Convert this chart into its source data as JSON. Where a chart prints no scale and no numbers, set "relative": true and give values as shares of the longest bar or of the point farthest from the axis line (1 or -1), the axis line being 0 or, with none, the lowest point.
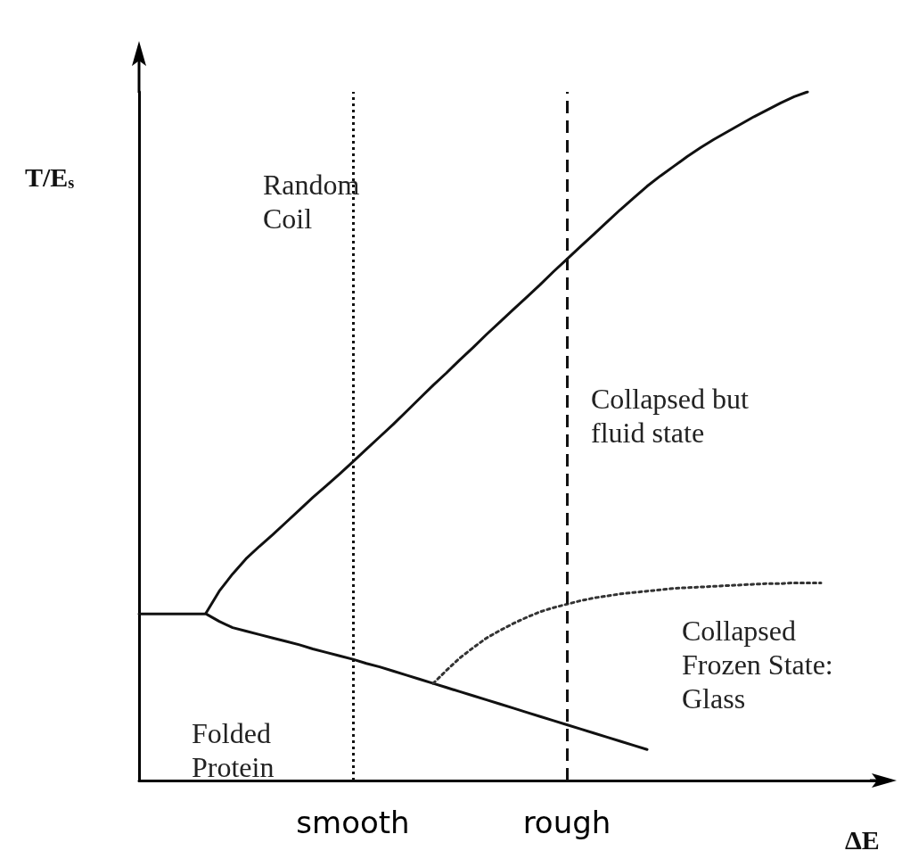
{
  "chart_data": {
    "type": "line",
    "relative": true,
    "xlabel": "ΔE",
    "ylabel": "T/E$_{s}$",
    "tick_labels": "x",
    "grid": false,
    "marker": "none",
    "categories": [
      null,
      null,
      null,
      null,
      null,
      null,
      null,
      null,
      null,
      null,
      null,
      null,
      null,
      null,
      null,
      null,
      "smooth",
      null,
      null,
      null,
      null,
      null,
      null,
      null,
      null,
      null,
      null,
      null,
      null,
      null,
      null,
      null,
      "rough",
      null,
      null,
      null,
      null,
      null,
      null,
      null,
      null,
      null,
      null,
      null,
      null,
      null,
      null,
      null,
      null,
      null,
      null,
      null,
      null,
      null,
      null,
      null,
      null
    ],
    "annotations": [
      "Random\nCoil",
      "Collapsed but\nfluid state",
      "Folded\nProtein",
      "Collapsed\nFrozen State:\nGlass"
    ],
    "ref_lines": [
      {
        "axis": "x",
        "value": "smooth",
        "color": "#111111",
        "line_style": "dotted"
      },
      {
        "axis": "x",
        "value": "rough",
        "color": "#111111",
        "line_style": "dashed"
      }
    ],
    "series": [
      {
        "color": "#111111",
        "line_style": "solid",
        "values": [
          null,
          null,
          null,
          null,
          null,
          0.243,
          0.275,
          0.3,
          0.322,
          0.34,
          0.357,
          0.375,
          0.393,
          0.411,
          0.428,
          0.445,
          0.463,
          0.481,
          0.499,
          0.517,
          0.536,
          0.555,
          0.574,
          0.592,
          0.611,
          0.629,
          0.648,
          0.666,
          0.684,
          0.702,
          0.72,
          0.739,
          0.757,
          0.775,
          0.793,
          0.811,
          0.829,
          0.846,
          0.863,
          0.878,
          0.892,
          0.906,
          0.919,
          0.931,
          0.942,
          0.953,
          0.964,
          0.974,
          0.984,
          0.993,
          1.0,
          null,
          null,
          null,
          null,
          null,
          null
        ]
      },
      {
        "color": "#111111",
        "line_style": "solid",
        "values": [
          0.242,
          0.242,
          0.242,
          0.242,
          0.242,
          0.242,
          0.231,
          0.222,
          0.217,
          0.212,
          0.207,
          0.202,
          0.197,
          0.191,
          0.186,
          0.181,
          0.176,
          0.17,
          0.165,
          0.159,
          0.153,
          0.147,
          0.141,
          0.135,
          0.129,
          0.123,
          0.117,
          0.111,
          0.105,
          0.099,
          0.093,
          0.087,
          0.081,
          0.075,
          0.069,
          0.063,
          0.057,
          0.051,
          0.045,
          null,
          null,
          null,
          null,
          null,
          null,
          null,
          null,
          null,
          null,
          null,
          null,
          null,
          null,
          null,
          null,
          null,
          null
        ]
      },
      {
        "color": "#333333",
        "line_style": "dotted",
        "values": [
          null,
          null,
          null,
          null,
          null,
          null,
          null,
          null,
          null,
          null,
          null,
          null,
          null,
          null,
          null,
          null,
          null,
          null,
          null,
          null,
          null,
          null,
          0.141,
          0.16,
          0.178,
          0.193,
          0.207,
          0.218,
          0.228,
          0.237,
          0.245,
          0.251,
          0.256,
          0.261,
          0.265,
          0.268,
          0.271,
          0.273,
          0.275,
          0.277,
          0.279,
          0.28,
          0.281,
          0.282,
          0.283,
          0.284,
          0.285,
          0.286,
          0.286,
          0.287,
          0.287,
          0.287,
          null,
          null,
          null,
          null,
          null
        ]
      }
    ]
  }
}
